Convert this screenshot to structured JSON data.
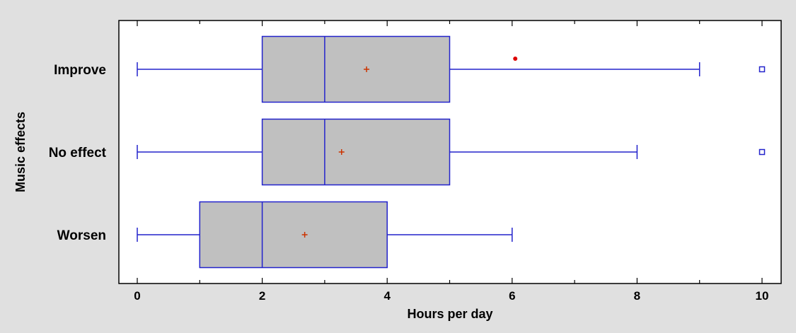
{
  "chart_data": {
    "type": "boxplot",
    "orientation": "horizontal",
    "xlabel": "Hours per day",
    "ylabel": "Music effects",
    "xlim": [
      -0.3,
      10.3
    ],
    "xticks": [
      0,
      2,
      4,
      6,
      8,
      10
    ],
    "xtick_labels": [
      "0",
      "2",
      "4",
      "6",
      "8",
      "10"
    ],
    "grid": false,
    "categories": [
      "Improve",
      "No effect",
      "Worsen"
    ],
    "boxes": [
      {
        "category": "Improve",
        "min": 0,
        "q1": 2,
        "median": 3,
        "q3": 5,
        "max": 9,
        "mean": 3.67,
        "outliers": [
          10
        ],
        "far_outliers": []
      },
      {
        "category": "No effect",
        "min": 0,
        "q1": 2,
        "median": 3,
        "q3": 5,
        "max": 8,
        "mean": 3.27,
        "outliers": [
          10
        ],
        "far_outliers": []
      },
      {
        "category": "Worsen",
        "min": 0,
        "q1": 1,
        "median": 2,
        "q3": 4,
        "max": 6,
        "mean": 2.68,
        "outliers": [],
        "far_outliers": []
      }
    ],
    "extra_markers": [
      {
        "category": "Improve",
        "value": 6.05,
        "marker": "dot",
        "color": "#dd0000"
      }
    ],
    "colors": {
      "box_fill": "#c0c0c0",
      "box_stroke": "#2222cc",
      "whisker": "#2222cc",
      "mean_marker": "#cc3300",
      "outlier": "#2222cc",
      "plot_background": "#ffffff",
      "page_background": "#e0e0e0"
    }
  }
}
